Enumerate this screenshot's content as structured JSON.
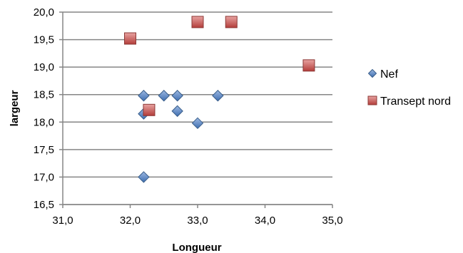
{
  "chart_data": {
    "type": "scatter",
    "xlabel": "Longueur",
    "ylabel": "largeur",
    "xlim": [
      31.0,
      35.0
    ],
    "ylim": [
      16.5,
      20.0
    ],
    "xticks": [
      "31,0",
      "32,0",
      "33,0",
      "34,0",
      "35,0"
    ],
    "yticks": [
      "16,5",
      "17,0",
      "17,5",
      "18,0",
      "18,5",
      "19,0",
      "19,5",
      "20,0"
    ],
    "grid": "horizontal",
    "legend_position": "right",
    "series": [
      {
        "name": "Nef",
        "marker": "diamond",
        "color": "#4f81bd",
        "points": [
          {
            "x": 32.2,
            "y": 18.48
          },
          {
            "x": 32.5,
            "y": 18.48
          },
          {
            "x": 32.7,
            "y": 18.48
          },
          {
            "x": 33.3,
            "y": 18.48
          },
          {
            "x": 32.2,
            "y": 18.15
          },
          {
            "x": 32.7,
            "y": 18.2
          },
          {
            "x": 33.0,
            "y": 17.98
          },
          {
            "x": 32.2,
            "y": 17.0
          }
        ]
      },
      {
        "name": "Transept nord",
        "marker": "square",
        "color": "#c0504d",
        "points": [
          {
            "x": 32.0,
            "y": 19.52
          },
          {
            "x": 33.0,
            "y": 19.82
          },
          {
            "x": 33.5,
            "y": 19.82
          },
          {
            "x": 34.65,
            "y": 19.03
          },
          {
            "x": 32.28,
            "y": 18.22
          }
        ]
      }
    ]
  }
}
